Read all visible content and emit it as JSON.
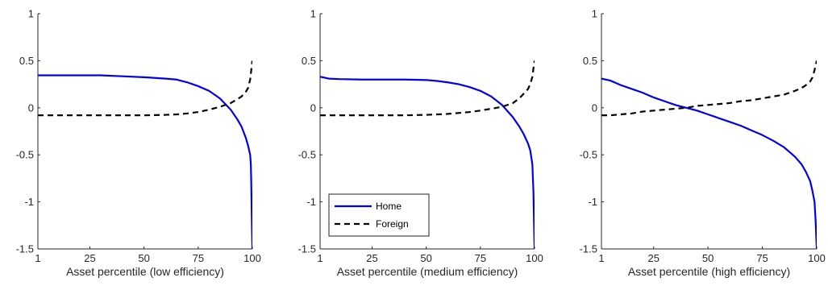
{
  "chart_data": [
    {
      "type": "line",
      "xlabel": "Asset percentile (low efficiency)",
      "ylabel": "",
      "xlim": [
        1,
        100
      ],
      "ylim": [
        -1.5,
        1
      ],
      "xticks": [
        1,
        25,
        50,
        75,
        100
      ],
      "yticks": [
        -1.5,
        -1,
        -0.5,
        0,
        0.5,
        1
      ],
      "grid": false,
      "series": [
        {
          "name": "Home",
          "x": [
            1,
            10,
            20,
            30,
            40,
            50,
            60,
            65,
            70,
            75,
            80,
            85,
            90,
            93,
            95,
            97,
            98,
            98.5,
            99,
            99.3,
            99.5,
            99.7,
            100
          ],
          "y": [
            0.345,
            0.345,
            0.345,
            0.345,
            0.335,
            0.325,
            0.31,
            0.3,
            0.27,
            0.23,
            0.18,
            0.1,
            -0.02,
            -0.12,
            -0.2,
            -0.32,
            -0.4,
            -0.45,
            -0.5,
            -0.6,
            -0.8,
            -1.1,
            -1.5
          ]
        },
        {
          "name": "Foreign",
          "x": [
            1,
            10,
            20,
            30,
            40,
            50,
            60,
            65,
            70,
            75,
            80,
            85,
            90,
            93,
            95,
            97,
            98,
            99,
            99.5,
            100
          ],
          "y": [
            -0.08,
            -0.08,
            -0.08,
            -0.08,
            -0.08,
            -0.08,
            -0.075,
            -0.07,
            -0.06,
            -0.045,
            -0.02,
            0.01,
            0.05,
            0.09,
            0.12,
            0.17,
            0.21,
            0.3,
            0.4,
            0.5
          ]
        }
      ]
    },
    {
      "type": "line",
      "xlabel": "Asset percentile (medium efficiency)",
      "ylabel": "",
      "xlim": [
        1,
        100
      ],
      "ylim": [
        -1.5,
        1
      ],
      "xticks": [
        1,
        25,
        50,
        75,
        100
      ],
      "yticks": [
        -1.5,
        -1,
        -0.5,
        0,
        0.5,
        1
      ],
      "grid": false,
      "legend": "lower-left",
      "series": [
        {
          "name": "Home",
          "x": [
            1,
            5,
            10,
            20,
            30,
            40,
            50,
            55,
            60,
            65,
            70,
            75,
            80,
            85,
            90,
            93,
            95,
            97,
            98,
            99,
            99.5,
            100
          ],
          "y": [
            0.33,
            0.31,
            0.305,
            0.3,
            0.3,
            0.3,
            0.295,
            0.285,
            0.27,
            0.25,
            0.22,
            0.18,
            0.12,
            0.03,
            -0.1,
            -0.2,
            -0.28,
            -0.38,
            -0.45,
            -0.6,
            -0.9,
            -1.5
          ]
        },
        {
          "name": "Foreign",
          "x": [
            1,
            10,
            20,
            30,
            40,
            50,
            55,
            60,
            65,
            70,
            75,
            80,
            85,
            90,
            93,
            95,
            97,
            98,
            99,
            99.5,
            100
          ],
          "y": [
            -0.08,
            -0.08,
            -0.08,
            -0.08,
            -0.08,
            -0.075,
            -0.07,
            -0.065,
            -0.055,
            -0.045,
            -0.03,
            -0.01,
            0.01,
            0.05,
            0.1,
            0.15,
            0.2,
            0.25,
            0.33,
            0.42,
            0.5
          ]
        }
      ]
    },
    {
      "type": "line",
      "xlabel": "Asset percentile (high efficiency)",
      "ylabel": "",
      "xlim": [
        1,
        100
      ],
      "ylim": [
        -1.5,
        1
      ],
      "xticks": [
        1,
        25,
        50,
        75,
        100
      ],
      "yticks": [
        -1.5,
        -1,
        -0.5,
        0,
        0.5,
        1
      ],
      "grid": false,
      "series": [
        {
          "name": "Home",
          "x": [
            1,
            5,
            10,
            15,
            20,
            25,
            30,
            35,
            40,
            45,
            50,
            55,
            60,
            65,
            70,
            75,
            80,
            85,
            90,
            93,
            95,
            97,
            98,
            99,
            99.5,
            100
          ],
          "y": [
            0.31,
            0.29,
            0.24,
            0.2,
            0.16,
            0.11,
            0.07,
            0.03,
            0.0,
            -0.03,
            -0.07,
            -0.11,
            -0.15,
            -0.19,
            -0.24,
            -0.29,
            -0.35,
            -0.42,
            -0.52,
            -0.6,
            -0.68,
            -0.78,
            -0.88,
            -1.0,
            -1.2,
            -1.5
          ]
        },
        {
          "name": "Foreign",
          "x": [
            1,
            5,
            10,
            15,
            20,
            25,
            30,
            35,
            40,
            45,
            50,
            55,
            60,
            65,
            70,
            75,
            80,
            85,
            90,
            93,
            95,
            97,
            98,
            99,
            100
          ],
          "y": [
            -0.08,
            -0.08,
            -0.07,
            -0.06,
            -0.04,
            -0.03,
            -0.02,
            -0.01,
            0.0,
            0.02,
            0.03,
            0.04,
            0.05,
            0.07,
            0.08,
            0.1,
            0.12,
            0.14,
            0.18,
            0.21,
            0.24,
            0.28,
            0.32,
            0.4,
            0.5
          ]
        }
      ]
    }
  ]
}
